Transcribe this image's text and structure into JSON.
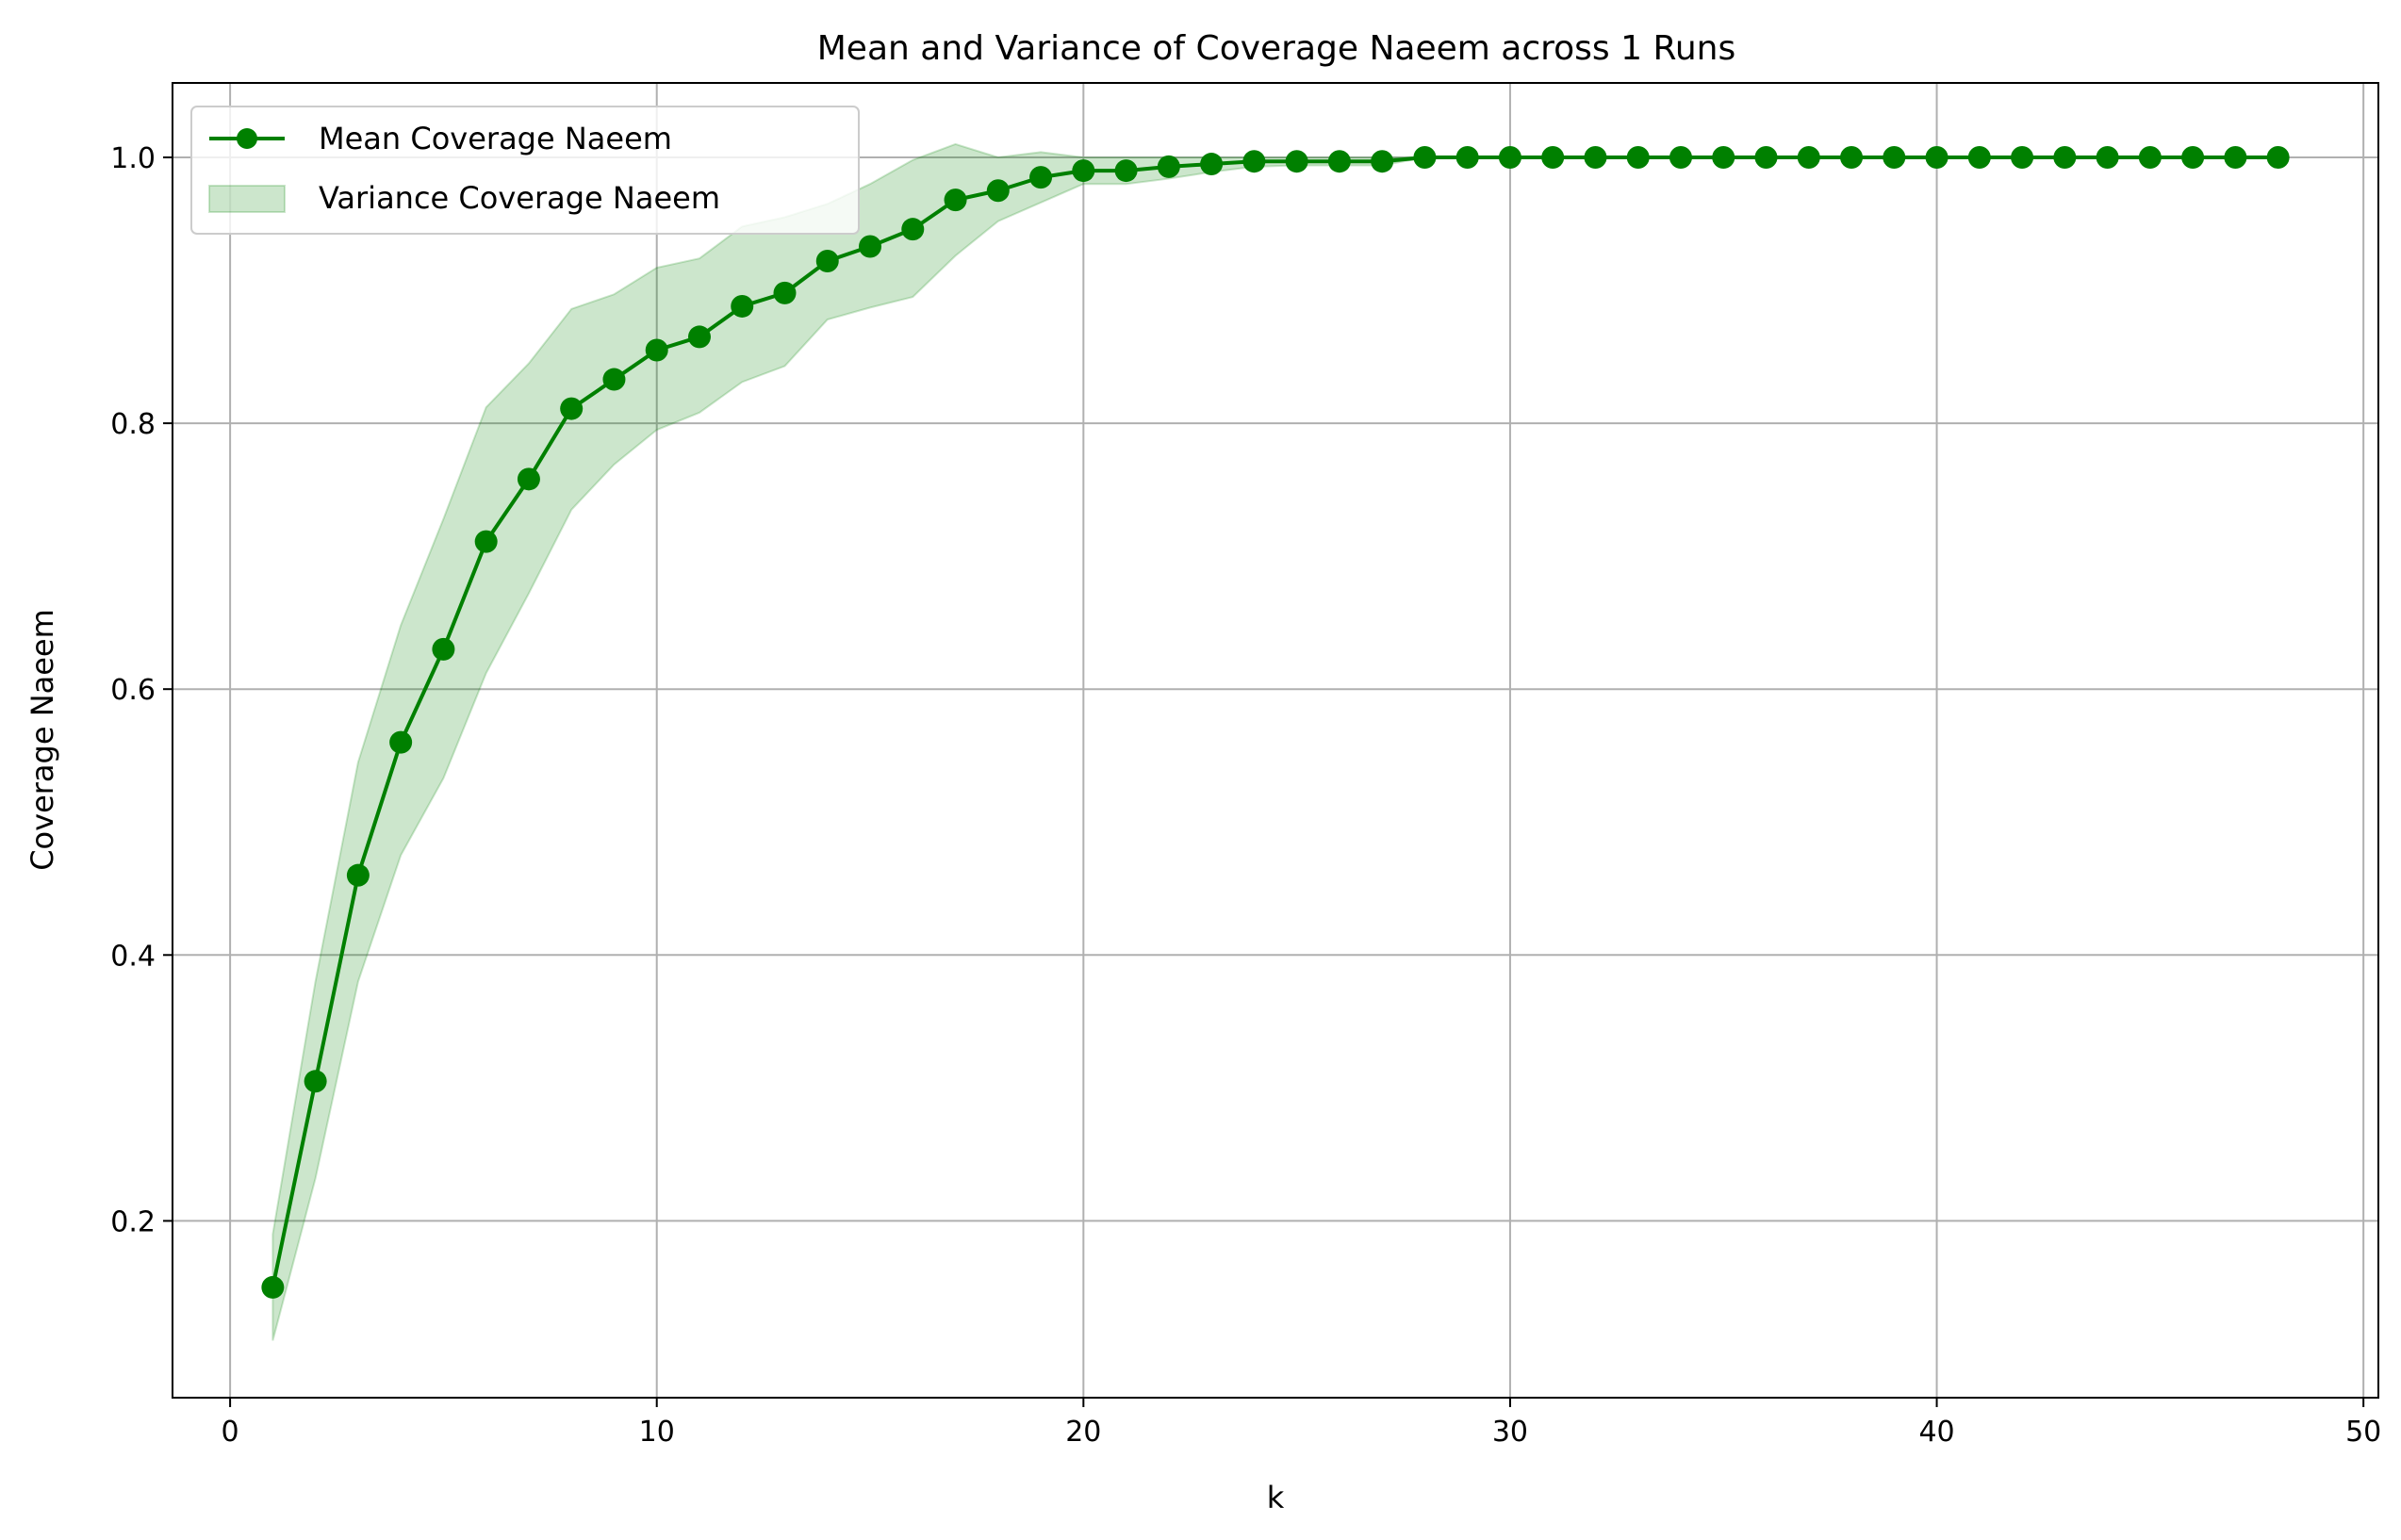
{
  "chart_data": {
    "type": "line",
    "title": "Mean and Variance of Coverage Naeem across 1 Runs",
    "xlabel": "k",
    "ylabel": "Coverage Naeem",
    "xlim": [
      -1.35,
      50.35
    ],
    "ylim": [
      0.067,
      1.056
    ],
    "grid": true,
    "legend_position": "top-left",
    "x_ticks": [
      0,
      10,
      20,
      30,
      40,
      50
    ],
    "y_ticks": [
      0.2,
      0.4,
      0.6,
      0.8,
      1.0
    ],
    "x_tick_labels": [
      "0",
      "10",
      "20",
      "30",
      "40",
      "50"
    ],
    "y_tick_labels": [
      "0.2",
      "0.4",
      "0.6",
      "0.8",
      "1.0"
    ],
    "colors": {
      "line": "#008000",
      "band": "#008000",
      "grid": "#b0b0b0"
    },
    "series": [
      {
        "name": "Mean Coverage Naeem",
        "x": [
          1,
          2,
          3,
          4,
          5,
          6,
          7,
          8,
          9,
          10,
          11,
          12,
          13,
          14,
          15,
          16,
          17,
          18,
          19,
          20,
          21,
          22,
          23,
          24,
          25,
          26,
          27,
          28,
          29,
          30,
          31,
          32,
          33,
          34,
          35,
          36,
          37,
          38,
          39,
          40,
          41,
          42,
          43,
          44,
          45,
          46,
          47,
          48
        ],
        "values": [
          0.15,
          0.305,
          0.46,
          0.56,
          0.63,
          0.711,
          0.758,
          0.811,
          0.833,
          0.855,
          0.865,
          0.888,
          0.898,
          0.922,
          0.933,
          0.946,
          0.968,
          0.975,
          0.985,
          0.99,
          0.99,
          0.993,
          0.995,
          0.997,
          0.997,
          0.997,
          0.997,
          1.0,
          1.0,
          1.0,
          1.0,
          1.0,
          1.0,
          1.0,
          1.0,
          1.0,
          1.0,
          1.0,
          1.0,
          1.0,
          1.0,
          1.0,
          1.0,
          1.0,
          1.0,
          1.0,
          1.0,
          1.0
        ]
      },
      {
        "name": "Variance Coverage Naeem",
        "x": [
          1,
          2,
          3,
          4,
          5,
          6,
          7,
          8,
          9,
          10,
          11,
          12,
          13,
          14,
          15,
          16,
          17,
          18,
          19,
          20,
          21,
          22,
          23,
          24,
          25,
          26,
          27,
          28,
          29,
          30,
          31,
          32,
          33,
          34,
          35,
          36,
          37,
          38,
          39,
          40,
          41,
          42,
          43,
          44,
          45,
          46,
          47,
          48
        ],
        "upper": [
          0.19,
          0.38,
          0.545,
          0.648,
          0.728,
          0.812,
          0.845,
          0.886,
          0.897,
          0.917,
          0.924,
          0.948,
          0.955,
          0.965,
          0.98,
          0.998,
          1.01,
          1.0,
          1.004,
          1.0,
          1.0,
          1.0,
          1.0,
          1.0,
          1.0,
          1.0,
          1.0,
          1.0,
          1.0,
          1.0,
          1.0,
          1.0,
          1.0,
          1.0,
          1.0,
          1.0,
          1.0,
          1.0,
          1.0,
          1.0,
          1.0,
          1.0,
          1.0,
          1.0,
          1.0,
          1.0,
          1.0,
          1.0
        ],
        "lower": [
          0.11,
          0.232,
          0.38,
          0.475,
          0.533,
          0.612,
          0.672,
          0.735,
          0.769,
          0.795,
          0.808,
          0.831,
          0.843,
          0.878,
          0.887,
          0.895,
          0.926,
          0.952,
          0.966,
          0.98,
          0.98,
          0.984,
          0.989,
          0.993,
          0.994,
          0.994,
          0.994,
          1.0,
          1.0,
          1.0,
          1.0,
          1.0,
          1.0,
          1.0,
          1.0,
          1.0,
          1.0,
          1.0,
          1.0,
          1.0,
          1.0,
          1.0,
          1.0,
          1.0,
          1.0,
          1.0,
          1.0,
          1.0
        ]
      }
    ]
  }
}
